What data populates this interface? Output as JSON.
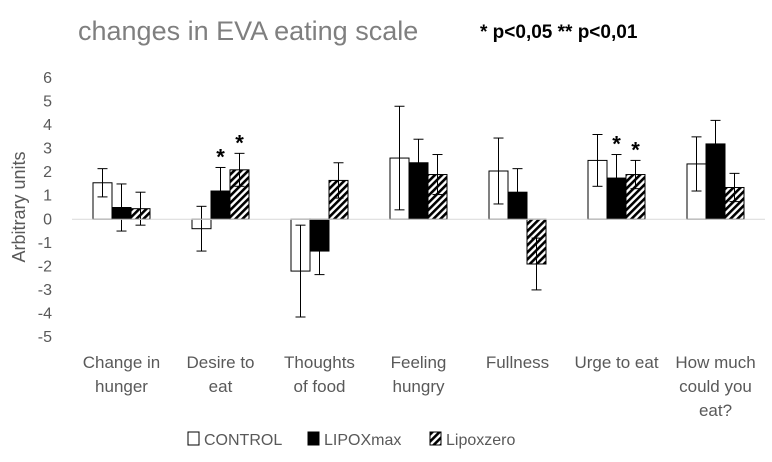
{
  "chart_data": {
    "type": "bar",
    "title": "changes in EVA eating scale",
    "significance_note": "* p<0,05 ** p<0,01",
    "ylabel": "Arbitrary units",
    "xlabel": "",
    "ylim": [
      -5,
      6
    ],
    "yticks": [
      "6",
      "5",
      "4",
      "3",
      "2",
      "1",
      "0",
      "-1",
      "-2",
      "-3",
      "-4",
      "-5"
    ],
    "ytick_values": [
      6,
      5,
      4,
      3,
      2,
      1,
      0,
      -1,
      -2,
      -3,
      -4,
      -5
    ],
    "grid": false,
    "legend_position": "bottom",
    "categories": [
      [
        "Change in",
        "hunger"
      ],
      [
        "Desire to",
        "eat"
      ],
      [
        "Thoughts",
        "of food"
      ],
      [
        "Feeling",
        "hungry"
      ],
      [
        "Fullness"
      ],
      [
        "Urge to eat"
      ],
      [
        "How much",
        "could you",
        "eat?"
      ]
    ],
    "series": [
      {
        "name": "CONTROL",
        "fill": "white",
        "values": [
          1.55,
          -0.4,
          -2.2,
          2.6,
          2.05,
          2.5,
          2.35
        ],
        "error": [
          0.6,
          0.95,
          1.95,
          2.2,
          1.4,
          1.1,
          1.15
        ],
        "significance": [
          "",
          "",
          "",
          "",
          "",
          "",
          ""
        ]
      },
      {
        "name": "LIPOXmax",
        "fill": "black",
        "values": [
          0.5,
          1.2,
          -1.35,
          2.4,
          1.15,
          1.75,
          3.2
        ],
        "error": [
          1.0,
          1.0,
          1.0,
          1.0,
          1.0,
          1.0,
          1.0
        ],
        "significance": [
          "",
          "*",
          "",
          "",
          "",
          "*",
          ""
        ]
      },
      {
        "name": "Lipoxzero",
        "fill": "hatched",
        "values": [
          0.45,
          2.1,
          1.65,
          1.9,
          -1.9,
          1.9,
          1.35
        ],
        "error": [
          0.7,
          0.7,
          0.75,
          0.85,
          1.1,
          0.6,
          0.6
        ],
        "significance": [
          "",
          "*",
          "",
          "",
          "",
          "*",
          ""
        ]
      }
    ]
  }
}
